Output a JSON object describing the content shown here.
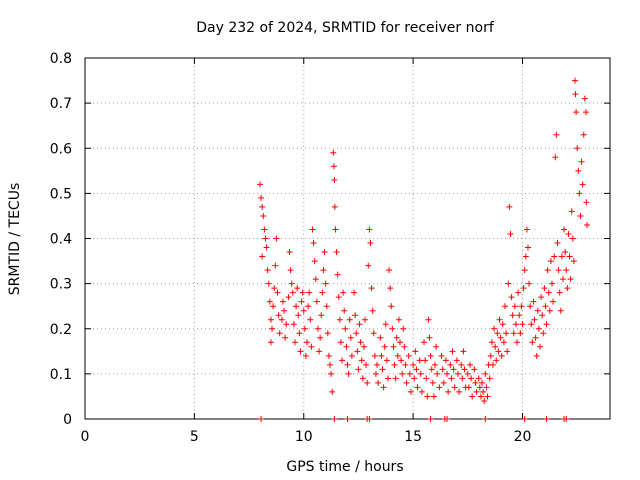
{
  "chart_data": {
    "type": "scatter",
    "title": "Day 232 of 2024, SRMTID for receiver norf",
    "xlabel": "GPS time / hours",
    "ylabel": "SRMTID / TECUs",
    "xlim": [
      0,
      24
    ],
    "ylim": [
      0,
      0.8
    ],
    "xticks": [
      0,
      5,
      10,
      15,
      20
    ],
    "yticks": [
      0,
      0.1,
      0.2,
      0.3,
      0.4,
      0.5,
      0.6,
      0.7,
      0.8
    ],
    "ytick_labels": [
      "0",
      "0.1",
      "0.2",
      "0.3",
      "0.4",
      "0.5",
      "0.6",
      "0.7",
      "0.8"
    ],
    "grid": true,
    "marker": "+",
    "color": "#ff0000",
    "series": [
      {
        "name": "SRMTID",
        "points": [
          [
            8.0,
            0.52
          ],
          [
            8.05,
            0.49
          ],
          [
            8.1,
            0.47
          ],
          [
            8.15,
            0.45
          ],
          [
            8.1,
            0.36
          ],
          [
            8.2,
            0.42
          ],
          [
            8.25,
            0.4
          ],
          [
            8.3,
            0.38
          ],
          [
            8.35,
            0.33
          ],
          [
            8.4,
            0.3
          ],
          [
            8.45,
            0.26
          ],
          [
            8.5,
            0.22
          ],
          [
            8.5,
            0.17
          ],
          [
            8.55,
            0.2
          ],
          [
            8.6,
            0.25
          ],
          [
            8.65,
            0.29
          ],
          [
            8.7,
            0.34
          ],
          [
            8.75,
            0.4
          ],
          [
            8.8,
            0.28
          ],
          [
            8.85,
            0.23
          ],
          [
            8.9,
            0.19
          ],
          [
            9.0,
            0.22
          ],
          [
            9.05,
            0.26
          ],
          [
            9.1,
            0.24
          ],
          [
            9.15,
            0.18
          ],
          [
            9.2,
            0.21
          ],
          [
            9.3,
            0.27
          ],
          [
            9.35,
            0.37
          ],
          [
            9.4,
            0.33
          ],
          [
            9.45,
            0.3
          ],
          [
            9.5,
            0.28
          ],
          [
            9.55,
            0.21
          ],
          [
            9.6,
            0.17
          ],
          [
            9.65,
            0.25
          ],
          [
            9.7,
            0.29
          ],
          [
            9.75,
            0.23
          ],
          [
            9.8,
            0.19
          ],
          [
            9.85,
            0.15
          ],
          [
            9.9,
            0.26
          ],
          [
            9.95,
            0.28
          ],
          [
            10.0,
            0.24
          ],
          [
            10.05,
            0.2
          ],
          [
            10.1,
            0.14
          ],
          [
            10.15,
            0.17
          ],
          [
            10.2,
            0.25
          ],
          [
            10.25,
            0.28
          ],
          [
            10.3,
            0.22
          ],
          [
            10.35,
            0.16
          ],
          [
            10.4,
            0.42
          ],
          [
            10.45,
            0.39
          ],
          [
            10.5,
            0.35
          ],
          [
            10.55,
            0.31
          ],
          [
            10.6,
            0.26
          ],
          [
            10.65,
            0.2
          ],
          [
            10.7,
            0.15
          ],
          [
            10.75,
            0.18
          ],
          [
            10.8,
            0.23
          ],
          [
            10.85,
            0.28
          ],
          [
            10.9,
            0.33
          ],
          [
            10.95,
            0.37
          ],
          [
            11.0,
            0.3
          ],
          [
            11.05,
            0.25
          ],
          [
            11.1,
            0.19
          ],
          [
            11.15,
            0.14
          ],
          [
            11.2,
            0.12
          ],
          [
            11.25,
            0.1
          ],
          [
            11.3,
            0.06
          ],
          [
            11.35,
            0.59
          ],
          [
            11.38,
            0.56
          ],
          [
            11.4,
            0.53
          ],
          [
            11.42,
            0.47
          ],
          [
            11.45,
            0.42
          ],
          [
            11.5,
            0.37
          ],
          [
            11.55,
            0.32
          ],
          [
            11.6,
            0.27
          ],
          [
            11.65,
            0.22
          ],
          [
            11.7,
            0.17
          ],
          [
            11.75,
            0.13
          ],
          [
            11.8,
            0.28
          ],
          [
            11.85,
            0.24
          ],
          [
            11.9,
            0.2
          ],
          [
            11.95,
            0.16
          ],
          [
            12.0,
            0.12
          ],
          [
            12.05,
            0.1
          ],
          [
            12.1,
            0.22
          ],
          [
            12.15,
            0.18
          ],
          [
            12.2,
            0.14
          ],
          [
            12.3,
            0.28
          ],
          [
            12.35,
            0.23
          ],
          [
            12.4,
            0.19
          ],
          [
            12.45,
            0.15
          ],
          [
            12.5,
            0.11
          ],
          [
            12.55,
            0.21
          ],
          [
            12.6,
            0.17
          ],
          [
            12.65,
            0.13
          ],
          [
            12.7,
            0.09
          ],
          [
            12.75,
            0.16
          ],
          [
            12.8,
            0.22
          ],
          [
            12.85,
            0.12
          ],
          [
            12.9,
            0.08
          ],
          [
            12.95,
            0.34
          ],
          [
            13.0,
            0.42
          ],
          [
            13.05,
            0.39
          ],
          [
            13.1,
            0.29
          ],
          [
            13.15,
            0.24
          ],
          [
            13.2,
            0.19
          ],
          [
            13.25,
            0.14
          ],
          [
            13.3,
            0.1
          ],
          [
            13.35,
            0.12
          ],
          [
            13.4,
            0.08
          ],
          [
            13.5,
            0.18
          ],
          [
            13.55,
            0.14
          ],
          [
            13.6,
            0.11
          ],
          [
            13.65,
            0.07
          ],
          [
            13.7,
            0.16
          ],
          [
            13.75,
            0.21
          ],
          [
            13.8,
            0.13
          ],
          [
            13.85,
            0.09
          ],
          [
            13.9,
            0.33
          ],
          [
            13.95,
            0.29
          ],
          [
            14.0,
            0.25
          ],
          [
            14.05,
            0.2
          ],
          [
            14.1,
            0.16
          ],
          [
            14.15,
            0.12
          ],
          [
            14.2,
            0.09
          ],
          [
            14.25,
            0.18
          ],
          [
            14.3,
            0.14
          ],
          [
            14.35,
            0.22
          ],
          [
            14.4,
            0.17
          ],
          [
            14.45,
            0.13
          ],
          [
            14.5,
            0.1
          ],
          [
            14.55,
            0.2
          ],
          [
            14.6,
            0.16
          ],
          [
            14.65,
            0.12
          ],
          [
            14.7,
            0.08
          ],
          [
            14.8,
            0.14
          ],
          [
            14.85,
            0.1
          ],
          [
            14.9,
            0.06
          ],
          [
            15.0,
            0.12
          ],
          [
            15.05,
            0.09
          ],
          [
            15.1,
            0.15
          ],
          [
            15.15,
            0.11
          ],
          [
            15.2,
            0.07
          ],
          [
            15.3,
            0.13
          ],
          [
            15.35,
            0.1
          ],
          [
            15.4,
            0.06
          ],
          [
            15.5,
            0.17
          ],
          [
            15.55,
            0.13
          ],
          [
            15.6,
            0.09
          ],
          [
            15.65,
            0.05
          ],
          [
            15.7,
            0.22
          ],
          [
            15.75,
            0.18
          ],
          [
            15.8,
            0.14
          ],
          [
            15.85,
            0.11
          ],
          [
            15.9,
            0.08
          ],
          [
            15.95,
            0.05
          ],
          [
            16.0,
            0.12
          ],
          [
            16.05,
            0.16
          ],
          [
            16.1,
            0.1
          ],
          [
            16.2,
            0.07
          ],
          [
            16.3,
            0.14
          ],
          [
            16.35,
            0.11
          ],
          [
            16.4,
            0.08
          ],
          [
            16.5,
            0.13
          ],
          [
            16.55,
            0.1
          ],
          [
            16.6,
            0.06
          ],
          [
            16.7,
            0.12
          ],
          [
            16.75,
            0.09
          ],
          [
            16.8,
            0.15
          ],
          [
            16.85,
            0.11
          ],
          [
            16.9,
            0.07
          ],
          [
            17.0,
            0.13
          ],
          [
            17.05,
            0.1
          ],
          [
            17.1,
            0.06
          ],
          [
            17.2,
            0.12
          ],
          [
            17.25,
            0.09
          ],
          [
            17.3,
            0.15
          ],
          [
            17.35,
            0.11
          ],
          [
            17.4,
            0.07
          ],
          [
            17.5,
            0.1
          ],
          [
            17.55,
            0.07
          ],
          [
            17.6,
            0.12
          ],
          [
            17.65,
            0.09
          ],
          [
            17.7,
            0.05
          ],
          [
            17.8,
            0.11
          ],
          [
            17.85,
            0.08
          ],
          [
            17.9,
            0.06
          ],
          [
            18.0,
            0.09
          ],
          [
            18.05,
            0.07
          ],
          [
            18.1,
            0.05
          ],
          [
            18.15,
            0.08
          ],
          [
            18.2,
            0.06
          ],
          [
            18.25,
            0.04
          ],
          [
            18.3,
            0.1
          ],
          [
            18.35,
            0.07
          ],
          [
            18.4,
            0.05
          ],
          [
            18.45,
            0.12
          ],
          [
            18.5,
            0.09
          ],
          [
            18.55,
            0.14
          ],
          [
            18.6,
            0.17
          ],
          [
            18.65,
            0.12
          ],
          [
            18.7,
            0.2
          ],
          [
            18.75,
            0.16
          ],
          [
            18.8,
            0.13
          ],
          [
            18.85,
            0.19
          ],
          [
            18.9,
            0.15
          ],
          [
            18.95,
            0.22
          ],
          [
            19.0,
            0.18
          ],
          [
            19.05,
            0.14
          ],
          [
            19.1,
            0.21
          ],
          [
            19.15,
            0.17
          ],
          [
            19.2,
            0.25
          ],
          [
            19.25,
            0.19
          ],
          [
            19.3,
            0.15
          ],
          [
            19.35,
            0.3
          ],
          [
            19.4,
            0.47
          ],
          [
            19.45,
            0.41
          ],
          [
            19.5,
            0.27
          ],
          [
            19.55,
            0.23
          ],
          [
            19.6,
            0.19
          ],
          [
            19.65,
            0.25
          ],
          [
            19.7,
            0.21
          ],
          [
            19.75,
            0.17
          ],
          [
            19.8,
            0.28
          ],
          [
            19.85,
            0.23
          ],
          [
            19.9,
            0.19
          ],
          [
            19.95,
            0.25
          ],
          [
            20.0,
            0.21
          ],
          [
            20.05,
            0.29
          ],
          [
            20.1,
            0.33
          ],
          [
            20.15,
            0.36
          ],
          [
            20.2,
            0.42
          ],
          [
            20.25,
            0.38
          ],
          [
            20.3,
            0.3
          ],
          [
            20.35,
            0.25
          ],
          [
            20.4,
            0.21
          ],
          [
            20.45,
            0.17
          ],
          [
            20.5,
            0.26
          ],
          [
            20.55,
            0.22
          ],
          [
            20.6,
            0.18
          ],
          [
            20.65,
            0.14
          ],
          [
            20.7,
            0.24
          ],
          [
            20.75,
            0.2
          ],
          [
            20.8,
            0.16
          ],
          [
            20.85,
            0.27
          ],
          [
            20.9,
            0.23
          ],
          [
            20.95,
            0.19
          ],
          [
            21.0,
            0.29
          ],
          [
            21.05,
            0.25
          ],
          [
            21.1,
            0.21
          ],
          [
            21.15,
            0.33
          ],
          [
            21.2,
            0.28
          ],
          [
            21.25,
            0.24
          ],
          [
            21.3,
            0.35
          ],
          [
            21.35,
            0.3
          ],
          [
            21.4,
            0.26
          ],
          [
            21.45,
            0.36
          ],
          [
            21.5,
            0.58
          ],
          [
            21.55,
            0.63
          ],
          [
            21.6,
            0.39
          ],
          [
            21.65,
            0.33
          ],
          [
            21.7,
            0.28
          ],
          [
            21.75,
            0.24
          ],
          [
            21.8,
            0.36
          ],
          [
            21.85,
            0.31
          ],
          [
            21.9,
            0.42
          ],
          [
            21.95,
            0.37
          ],
          [
            22.0,
            0.33
          ],
          [
            22.05,
            0.29
          ],
          [
            22.1,
            0.41
          ],
          [
            22.15,
            0.36
          ],
          [
            22.2,
            0.31
          ],
          [
            22.25,
            0.46
          ],
          [
            22.3,
            0.4
          ],
          [
            22.35,
            0.35
          ],
          [
            22.4,
            0.75
          ],
          [
            22.42,
            0.72
          ],
          [
            22.45,
            0.68
          ],
          [
            22.5,
            0.6
          ],
          [
            22.55,
            0.55
          ],
          [
            22.6,
            0.5
          ],
          [
            22.65,
            0.45
          ],
          [
            22.7,
            0.57
          ],
          [
            22.75,
            0.52
          ],
          [
            22.8,
            0.63
          ],
          [
            22.85,
            0.71
          ],
          [
            22.9,
            0.68
          ],
          [
            22.92,
            0.48
          ],
          [
            22.95,
            0.43
          ]
        ]
      }
    ],
    "edge_points": [
      [
        8.05,
        0
      ],
      [
        11.4,
        0
      ],
      [
        12.0,
        0
      ],
      [
        12.9,
        0
      ],
      [
        13.0,
        0
      ],
      [
        15.8,
        0
      ],
      [
        16.45,
        0
      ],
      [
        16.55,
        0
      ],
      [
        18.3,
        0
      ],
      [
        20.1,
        0
      ],
      [
        21.1,
        0
      ],
      [
        21.9,
        0
      ],
      [
        22.0,
        0
      ]
    ]
  }
}
